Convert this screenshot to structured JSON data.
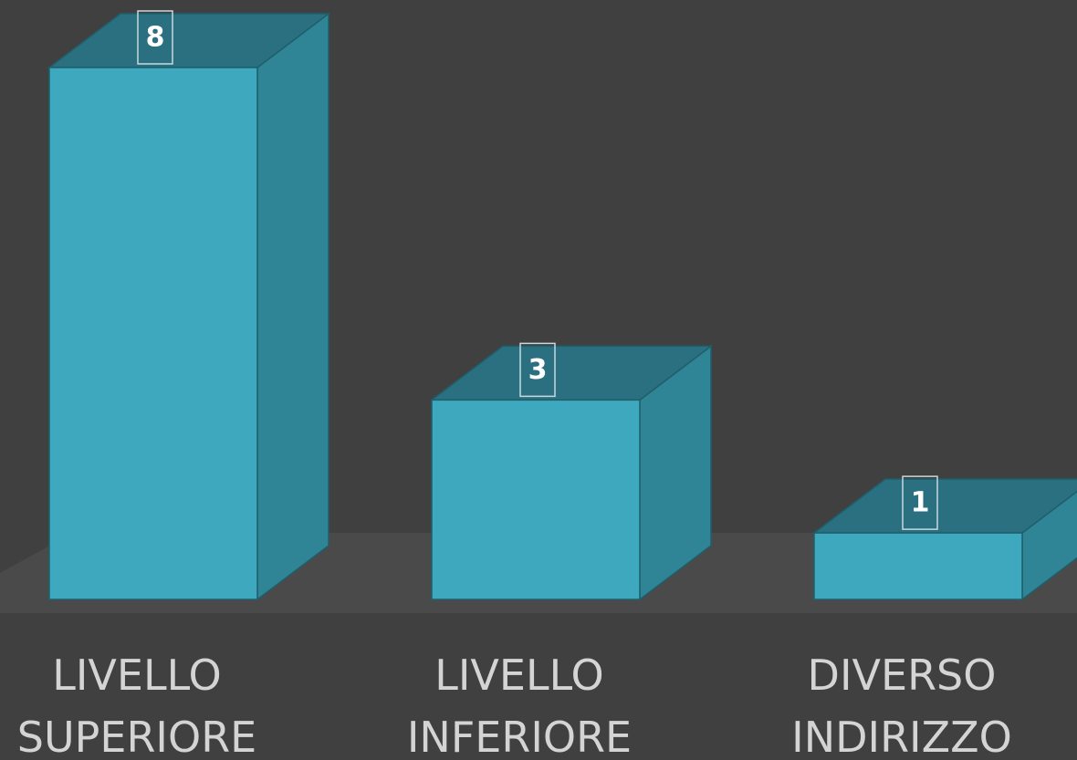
{
  "chart_data": {
    "type": "bar",
    "style": "3d",
    "categories": [
      "LIVELLO SUPERIORE",
      "LIVELLO INFERIORE",
      "DIVERSO INDIRIZZO"
    ],
    "category_lines": [
      [
        "LIVELLO",
        "SUPERIORE"
      ],
      [
        "LIVELLO",
        "INFERIORE"
      ],
      [
        "DIVERSO",
        "INDIRIZZO"
      ]
    ],
    "values": [
      8,
      3,
      1
    ],
    "ylim": [
      0,
      8
    ],
    "grid": false,
    "legend": "none",
    "data_labels": true,
    "colors": {
      "background": "#404040",
      "floor": "#4a4a4a",
      "bar_front": "#3ea8be",
      "bar_side": "#2f8596",
      "bar_top": "#2b7080",
      "bar_stroke": "#1f5f6c",
      "category_text": "#d4d4d4",
      "label_text": "#ffffff",
      "label_border": "#c8d8dc"
    }
  }
}
